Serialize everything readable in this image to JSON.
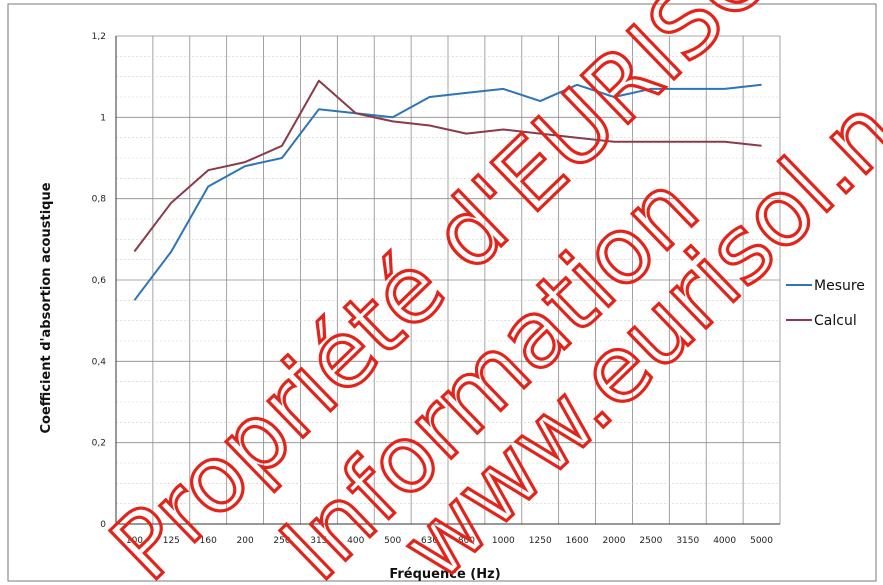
{
  "chart_data": {
    "type": "line",
    "title": "",
    "xlabel": "Fréquence (Hz)",
    "ylabel": "Coefficient d'absortion acoustique",
    "categories": [
      "100",
      "125",
      "160",
      "200",
      "250",
      "315",
      "400",
      "500",
      "630",
      "800",
      "1000",
      "1250",
      "1600",
      "2000",
      "2500",
      "3150",
      "4000",
      "5000"
    ],
    "ylim": [
      0,
      1.2
    ],
    "y_ticks": [
      "0",
      "0,2",
      "0,4",
      "0,6",
      "0,8",
      "1",
      "1,2"
    ],
    "grid": true,
    "legend_position": "right",
    "series": [
      {
        "name": "Mesure",
        "color": "#2e75b6",
        "values": [
          0.55,
          0.67,
          0.83,
          0.88,
          0.9,
          1.02,
          1.01,
          1.0,
          1.05,
          1.06,
          1.07,
          1.04,
          1.08,
          1.05,
          1.07,
          1.07,
          1.07,
          1.08
        ]
      },
      {
        "name": "Calcul",
        "color": "#8b3a4a",
        "values": [
          0.67,
          0.79,
          0.87,
          0.89,
          0.93,
          1.09,
          1.01,
          0.99,
          0.98,
          0.96,
          0.97,
          0.96,
          0.95,
          0.94,
          0.94,
          0.94,
          0.94,
          0.93
        ]
      }
    ]
  },
  "watermark": {
    "lines": [
      "Propriété d'EURISOL",
      "Information",
      "www.eurisol.n"
    ],
    "color": "#e2241b"
  }
}
